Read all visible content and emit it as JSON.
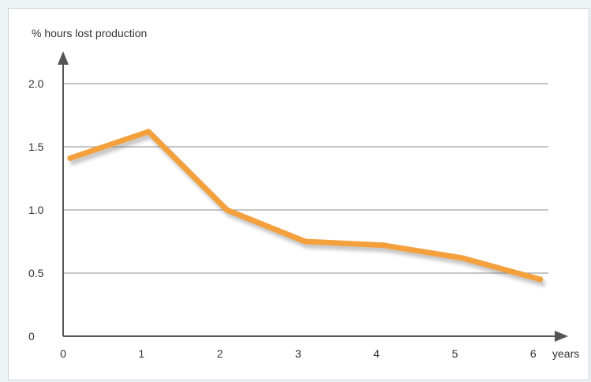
{
  "chart_data": {
    "type": "line",
    "ylabel": "% hours lost production",
    "xlabel": "years",
    "x": [
      0,
      1,
      2,
      3,
      4,
      5,
      6
    ],
    "x_ticks": [
      "0",
      "1",
      "2",
      "3",
      "4",
      "5",
      "6"
    ],
    "y_ticks": [
      "0",
      "0.5",
      "1.0",
      "1.5",
      "2.0"
    ],
    "y_tick_values": [
      0,
      0.5,
      1.0,
      1.5,
      2.0
    ],
    "xlim": [
      0,
      6
    ],
    "ylim": [
      0,
      2.0
    ],
    "grid": "horizontal",
    "series": [
      {
        "values": [
          1.41,
          1.62,
          1.0,
          0.75,
          0.72,
          0.62,
          0.45
        ]
      }
    ],
    "colors": {
      "line": "#f4a03d",
      "line_shadow": "#7a7a7a",
      "grid": "#8c8c8c",
      "axis": "#555555",
      "background": "#eef3f6"
    }
  }
}
